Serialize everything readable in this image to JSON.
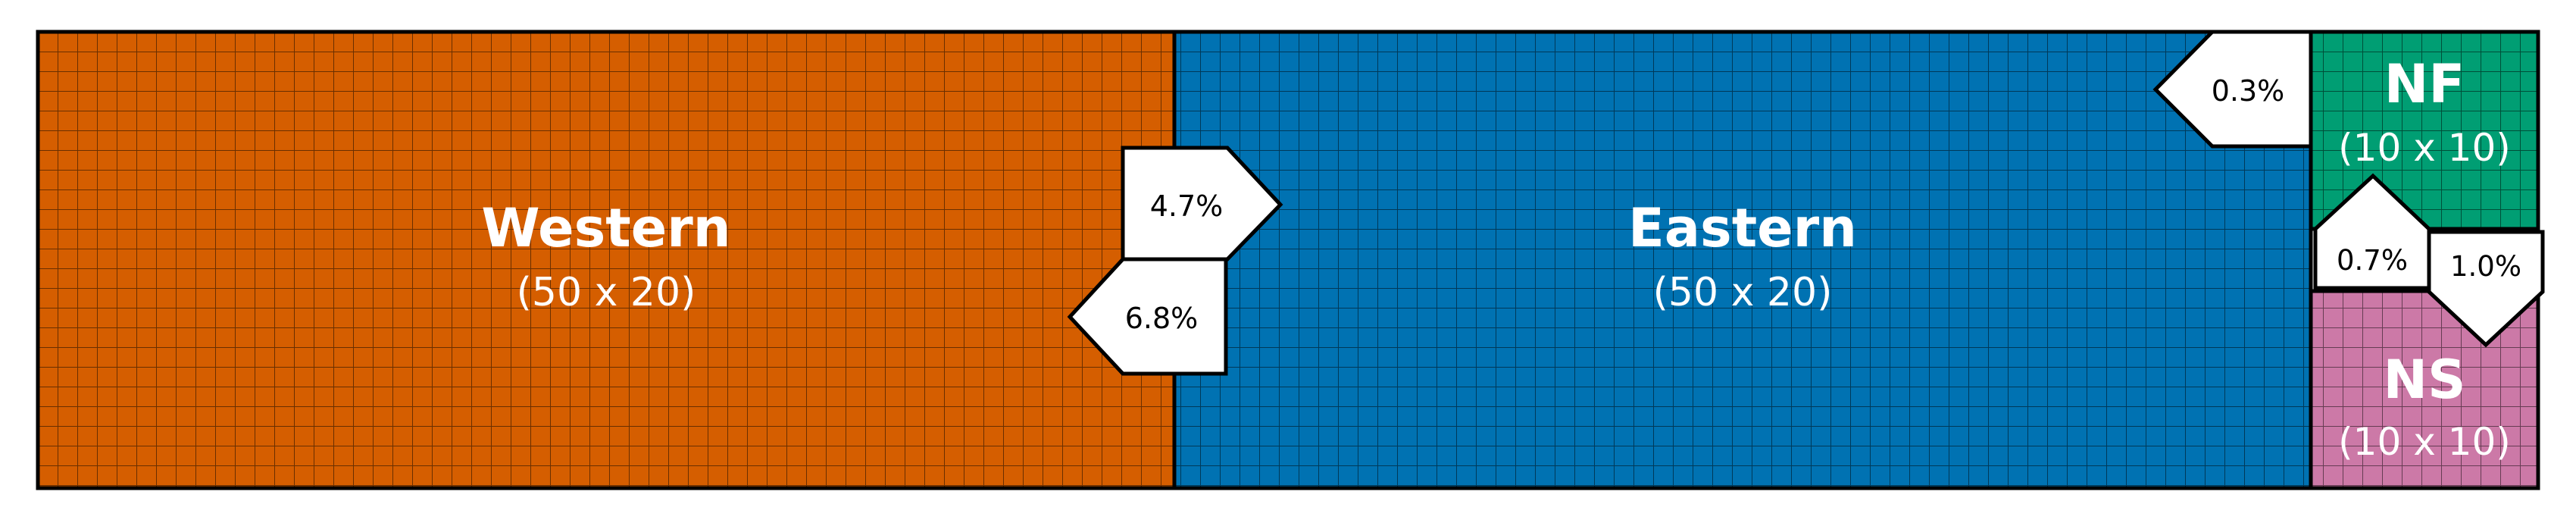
{
  "regions": [
    {
      "id": "western",
      "name": "Western",
      "dims": "(50 x 20)",
      "color": "#d55e00"
    },
    {
      "id": "eastern",
      "name": "Eastern",
      "dims": "(50 x 20)",
      "color": "#0072b2"
    },
    {
      "id": "nf",
      "name": "NF",
      "dims": "(10 x 10)",
      "color": "#009e73"
    },
    {
      "id": "ns",
      "name": "NS",
      "dims": "(10 x 10)",
      "color": "#cc79a7"
    }
  ],
  "flows": [
    {
      "id": "western-to-eastern",
      "label": "4.7%"
    },
    {
      "id": "eastern-to-western",
      "label": "6.8%"
    },
    {
      "id": "nf-to-eastern",
      "label": "0.3%"
    },
    {
      "id": "ns-to-nf",
      "label": "0.7%"
    },
    {
      "id": "nf-to-ns",
      "label": "1.0%"
    }
  ]
}
